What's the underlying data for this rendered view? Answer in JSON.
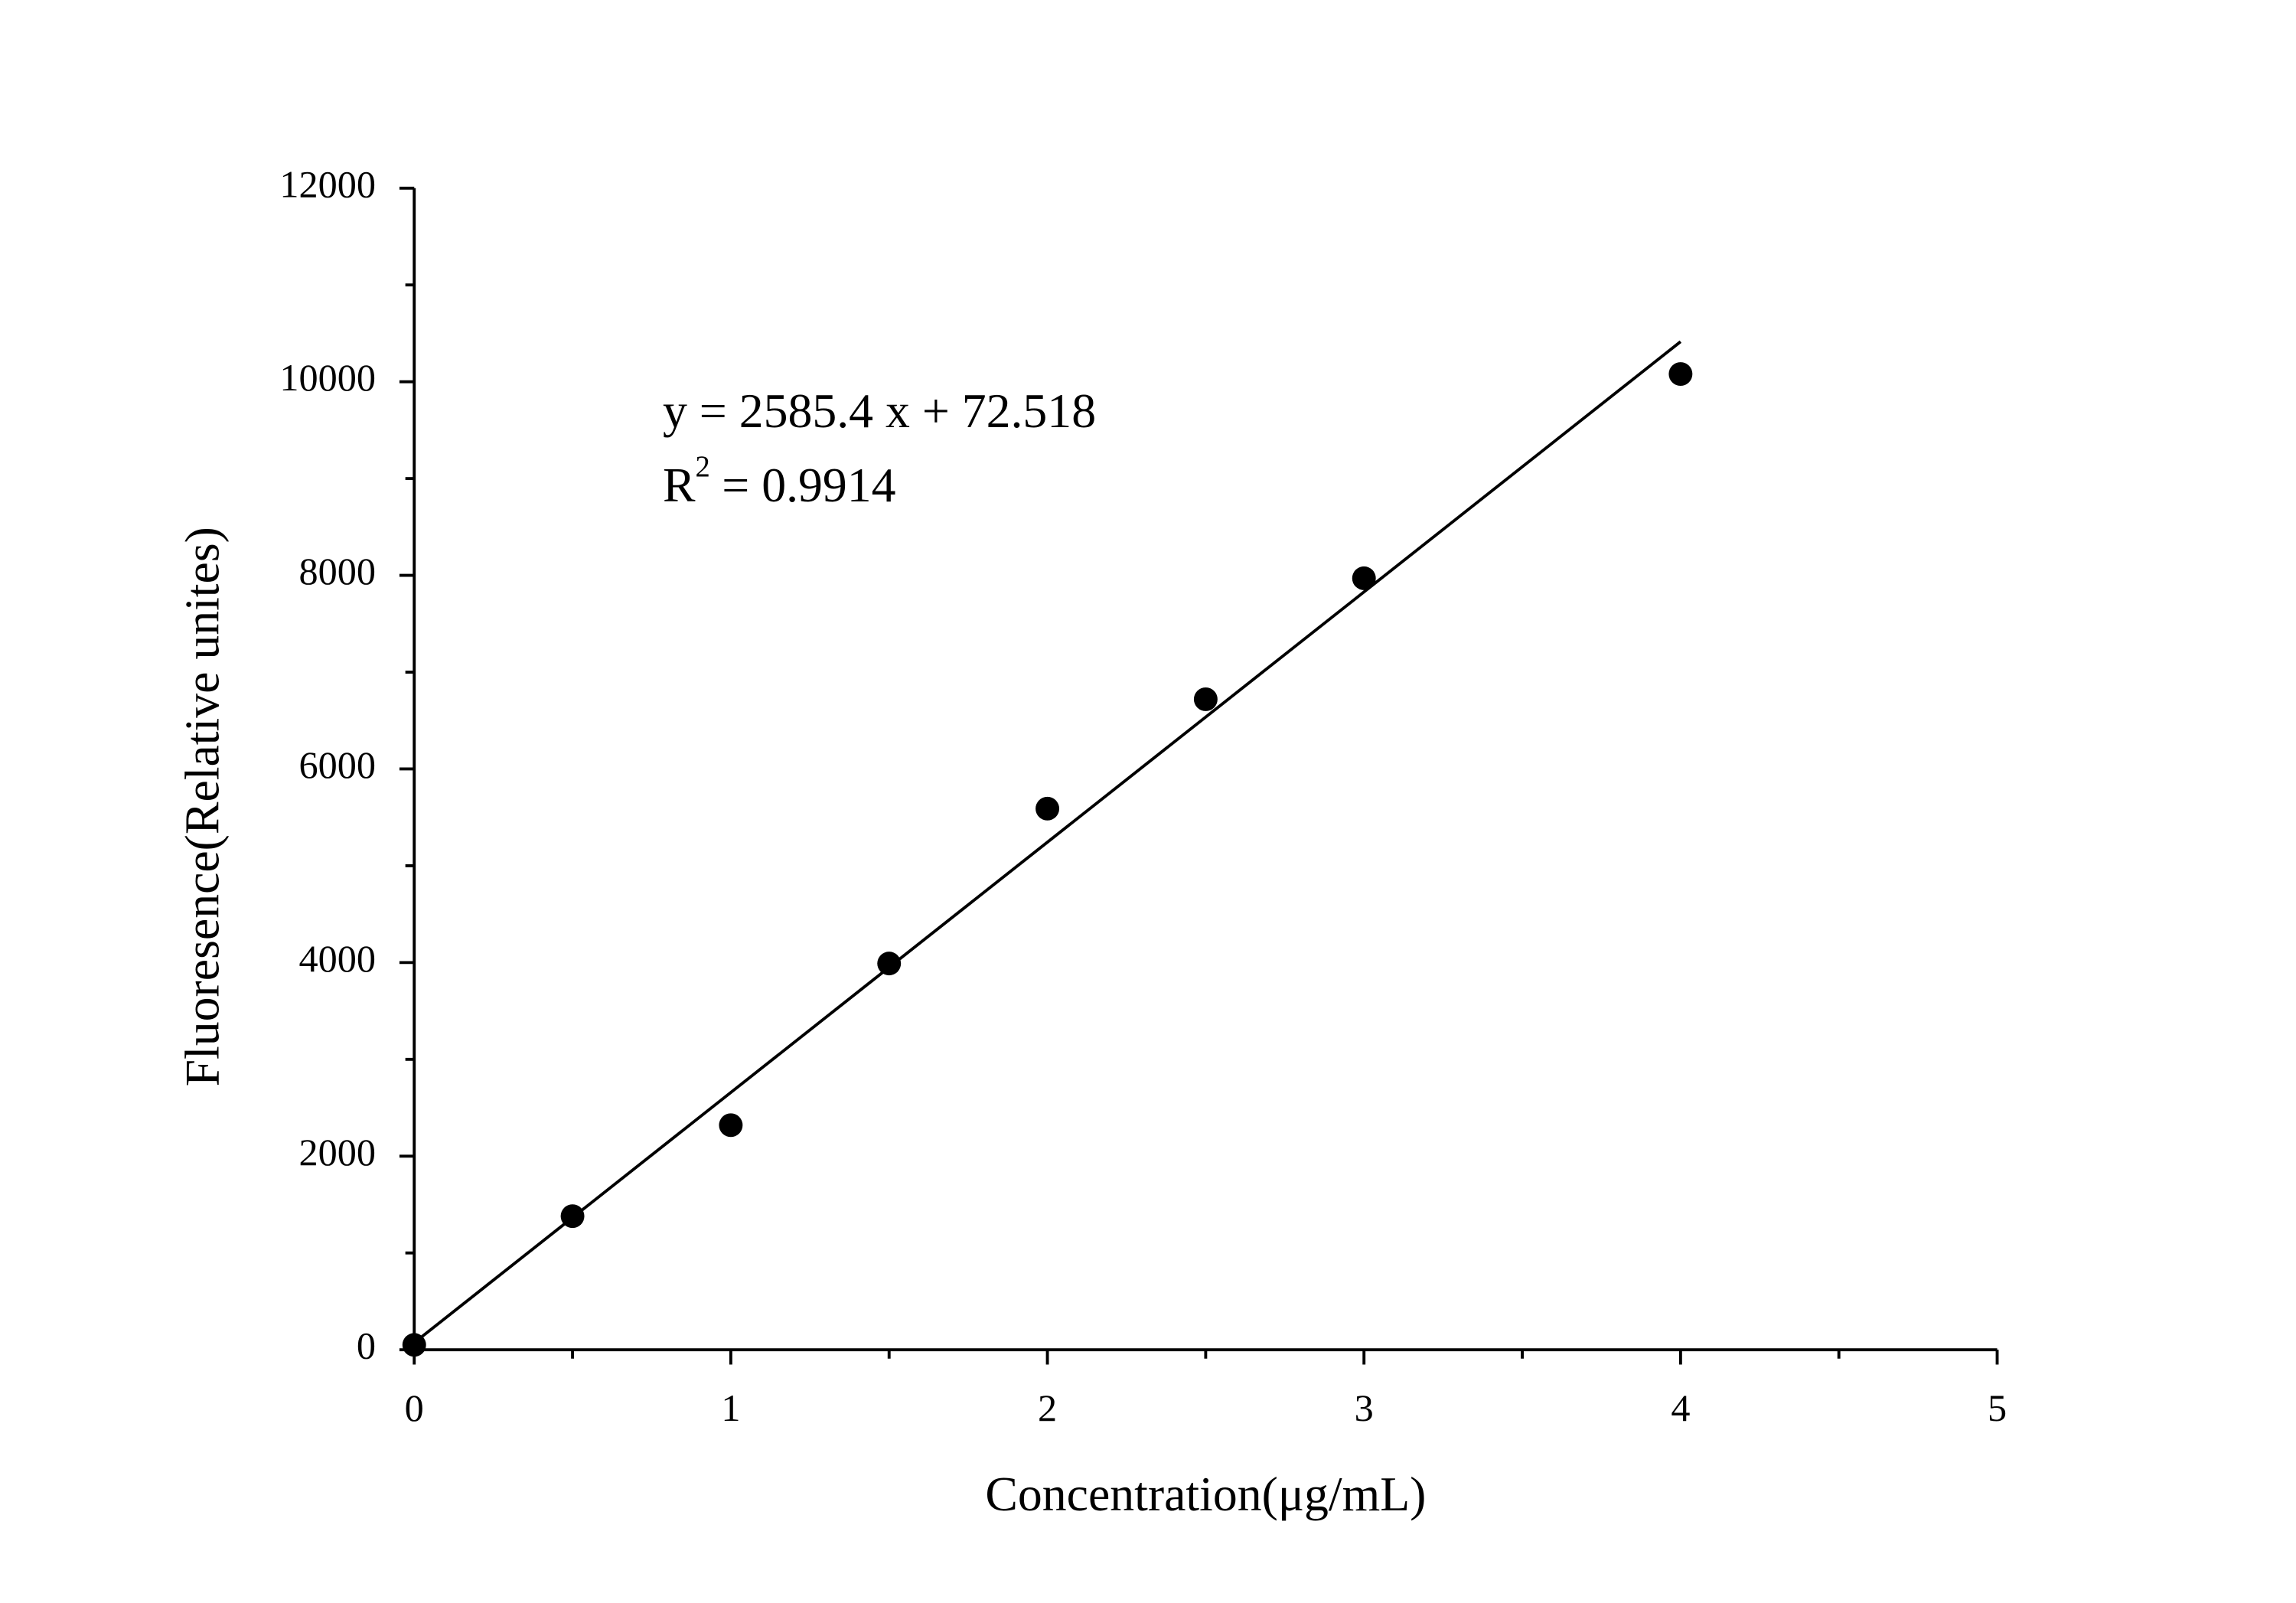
{
  "chart_data": {
    "type": "scatter",
    "x_label": "Concentration(μg/mL)",
    "y_label": "Fluoresence(Relative unites)",
    "equation": "y = 2585.4 x + 72.518",
    "r2": {
      "base": "R",
      "sup": "2",
      "rest": "= 0.9914"
    },
    "x": [
      0,
      0.5,
      1,
      1.5,
      2,
      2.5,
      3,
      4
    ],
    "values": [
      50,
      1380,
      2320,
      3990,
      5590,
      6720,
      7970,
      10080
    ],
    "color": "#000000",
    "fit_line": {
      "x": [
        0,
        4
      ],
      "values": [
        72.518,
        10414.1
      ]
    },
    "xlim": [
      0,
      5
    ],
    "xticks": [
      0,
      1,
      2,
      3,
      4,
      5
    ],
    "xminorticks": [
      0.5,
      1.5,
      2.5,
      3.5,
      4.5
    ],
    "ylim": [
      0,
      12000
    ],
    "yticks": [
      0,
      2000,
      4000,
      6000,
      8000,
      10000,
      12000
    ],
    "yminorticks": [
      1000,
      3000,
      5000,
      7000,
      9000,
      11000
    ]
  }
}
